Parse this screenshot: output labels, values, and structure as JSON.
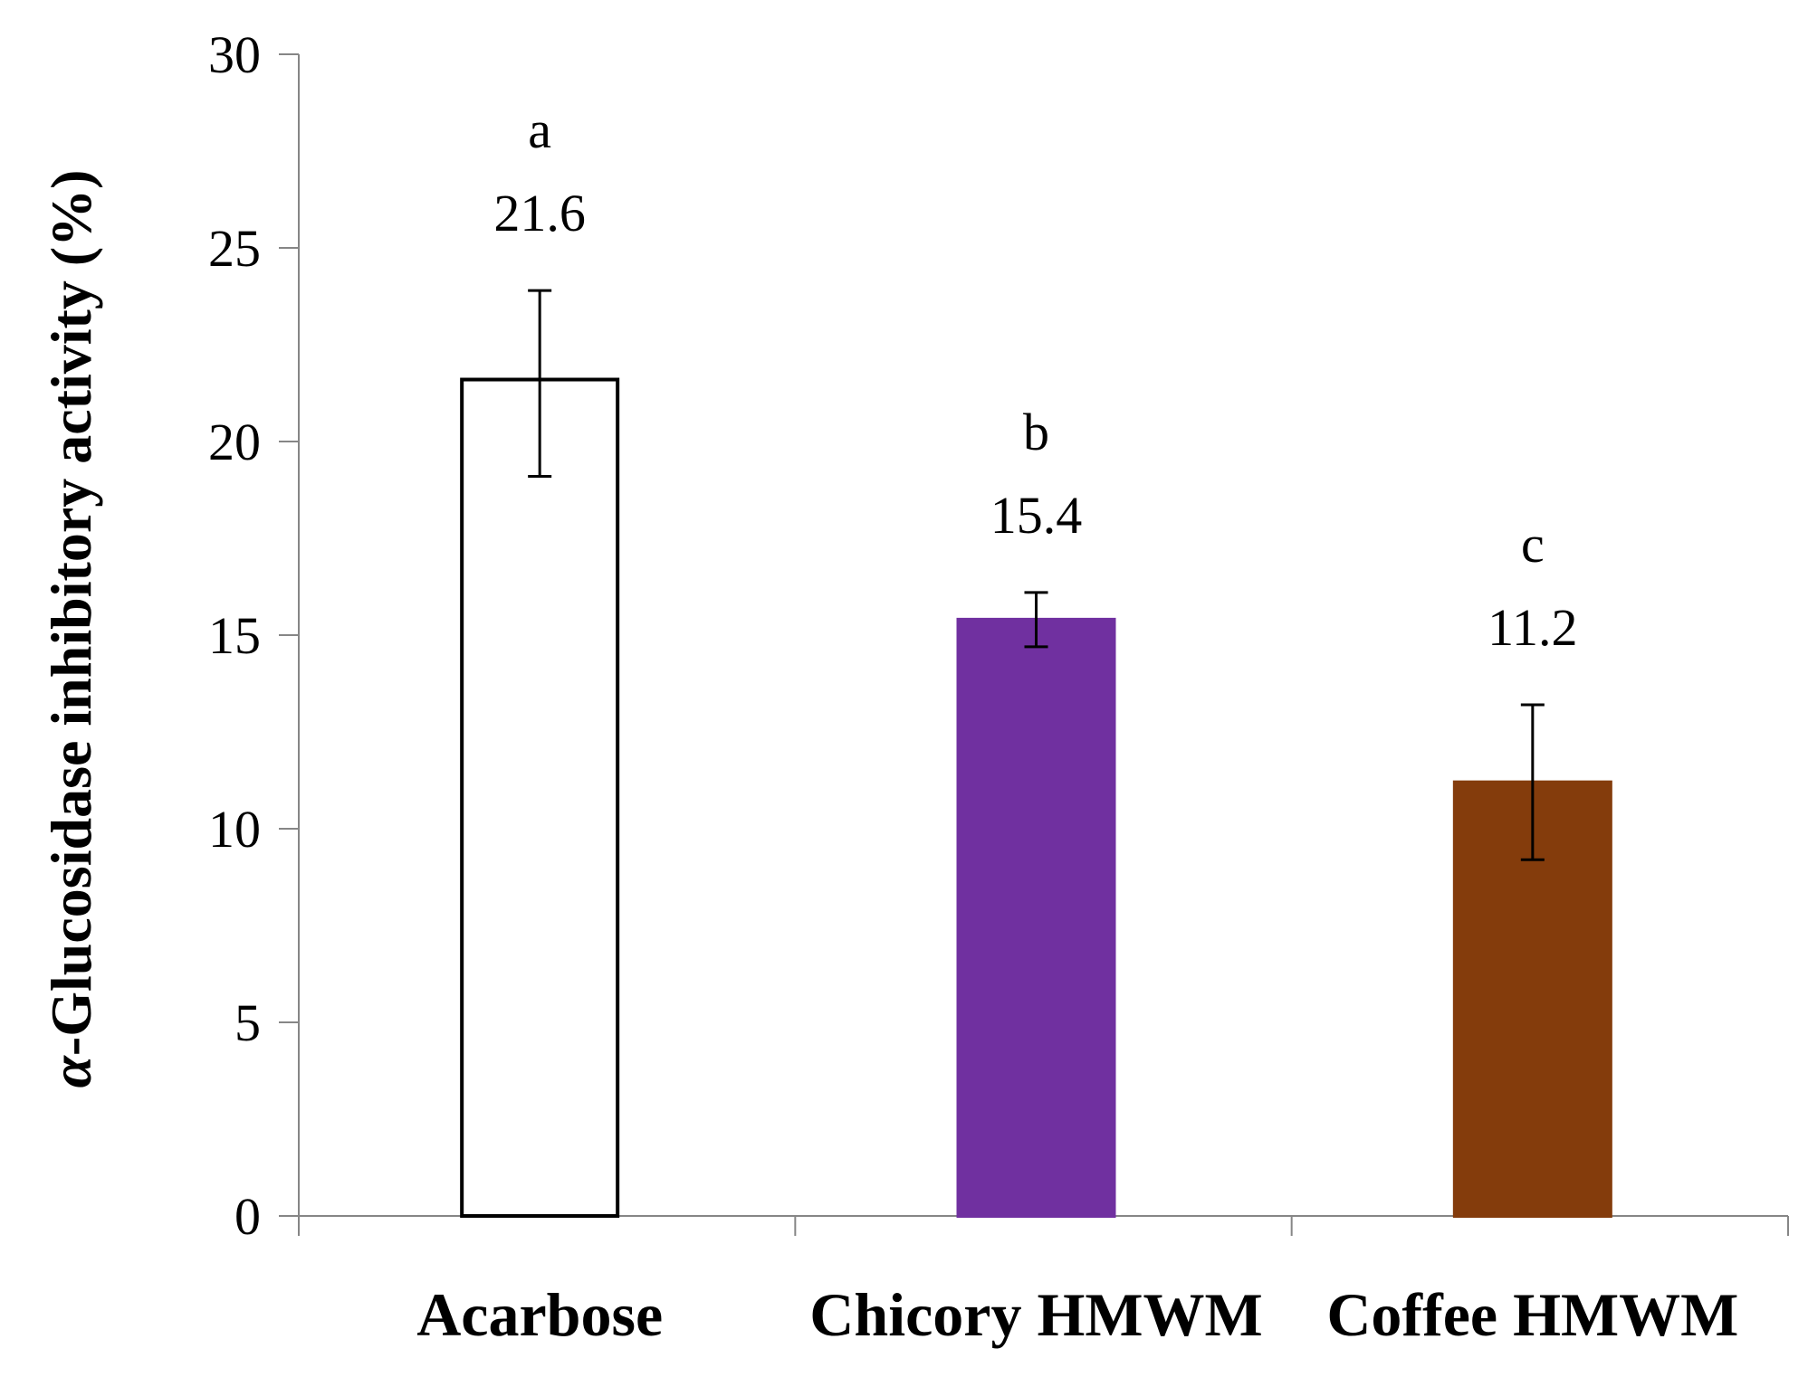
{
  "chart_data": {
    "type": "bar",
    "title": "",
    "xlabel": "",
    "ylabel_symbol": "α",
    "ylabel_text": "-Glucosidase inhibitory activity (%)",
    "ylim": [
      0,
      30
    ],
    "yticks": [
      "0",
      "5",
      "10",
      "15",
      "20",
      "25",
      "30"
    ],
    "grid": false,
    "categories": [
      "Acarbose",
      "Chicory HMWM",
      "Coffee HMWM"
    ],
    "values": [
      21.6,
      15.4,
      11.2
    ],
    "value_labels": [
      "21.6",
      "15.4",
      "11.2"
    ],
    "error_lower": [
      19.1,
      14.7,
      9.2
    ],
    "error_upper": [
      23.9,
      16.1,
      13.2
    ],
    "significance_letters": [
      "a",
      "b",
      "c"
    ],
    "bar_fill_colors": [
      "#FFFFFF",
      "#7030A0",
      "#843C0C"
    ],
    "bar_stroke_colors": [
      "#000000",
      "#7030A0",
      "#843C0C"
    ]
  }
}
